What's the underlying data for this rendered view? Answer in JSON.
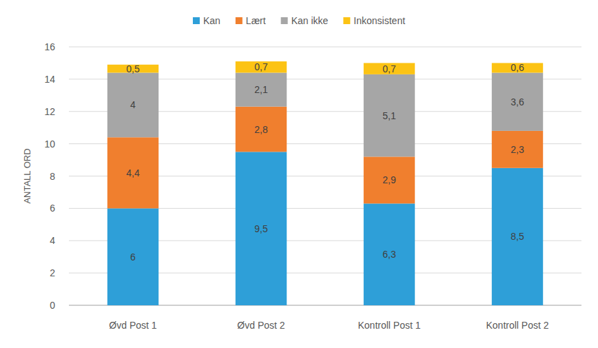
{
  "chart_data": {
    "type": "bar",
    "stacked": true,
    "data_labels": true,
    "grid": true,
    "legend": "top",
    "ylabel": "ANTALL ORD",
    "categories": [
      "Øvd Post 1",
      "Øvd Post 2",
      "Kontroll Post 1",
      "Kontroll Post 2"
    ],
    "ylim": [
      0,
      16
    ],
    "yticks": [
      0,
      2,
      4,
      6,
      8,
      10,
      12,
      14,
      16
    ],
    "series": [
      {
        "name": "Kan",
        "color": "#2e9fd8",
        "values": [
          6,
          9.5,
          6.3,
          8.5
        ],
        "value_labels": [
          "6",
          "9,5",
          "6,3",
          "8,5"
        ]
      },
      {
        "name": "Lært",
        "color": "#f07f2e",
        "values": [
          4.4,
          2.8,
          2.9,
          2.3
        ],
        "value_labels": [
          "4,4",
          "2,8",
          "2,9",
          "2,3"
        ]
      },
      {
        "name": "Kan ikke",
        "color": "#a6a6a6",
        "values": [
          4,
          2.1,
          5.1,
          3.6
        ],
        "value_labels": [
          "4",
          "2,1",
          "5,1",
          "3,6"
        ]
      },
      {
        "name": "Inkonsistent",
        "color": "#fcc314",
        "values": [
          0.5,
          0.7,
          0.7,
          0.6
        ],
        "value_labels": [
          "0,5",
          "0,7",
          "0,7",
          "0,6"
        ]
      }
    ]
  }
}
